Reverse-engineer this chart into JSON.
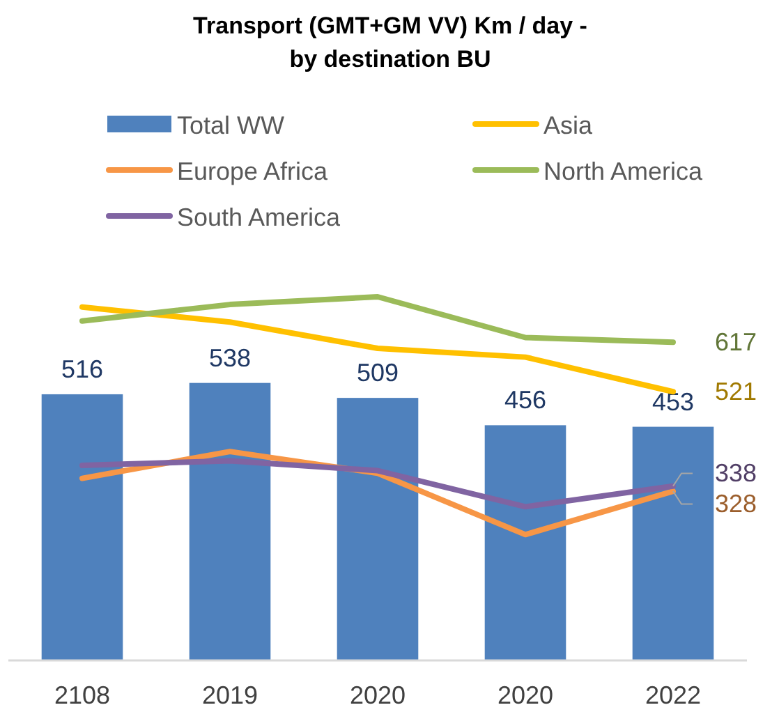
{
  "chart_data": {
    "type": "bar",
    "title": "Transport (GMT+GM VV) Km / day -\nby destination BU",
    "categories": [
      "2108",
      "2019",
      "2020",
      "2020",
      "2022"
    ],
    "legend": "top",
    "series": [
      {
        "name": "Total WW",
        "color": "#4f81bd",
        "values": [
          516,
          538,
          509,
          456,
          453
        ],
        "value_labels": [
          "516",
          "538",
          "509",
          "456",
          "453"
        ]
      },
      {
        "name": "Asia",
        "type": "line",
        "color": "#ffc000",
        "values": [
          685,
          656,
          605,
          588,
          521
        ],
        "value_labels": [
          null,
          null,
          null,
          null,
          "521"
        ]
      },
      {
        "name": "Europe Africa",
        "type": "line",
        "color": "#f79646",
        "values": [
          353,
          405,
          363,
          244,
          328
        ],
        "value_labels": [
          null,
          null,
          null,
          null,
          "328"
        ]
      },
      {
        "name": "North America",
        "type": "line",
        "color": "#9bbb59",
        "values": [
          658,
          690,
          705,
          626,
          617
        ],
        "value_labels": [
          null,
          null,
          null,
          null,
          "617"
        ]
      },
      {
        "name": "South America",
        "type": "line",
        "color": "#8064a2",
        "values": [
          378,
          387,
          368,
          298,
          338
        ],
        "value_labels": [
          null,
          null,
          null,
          null,
          "338"
        ]
      }
    ]
  }
}
